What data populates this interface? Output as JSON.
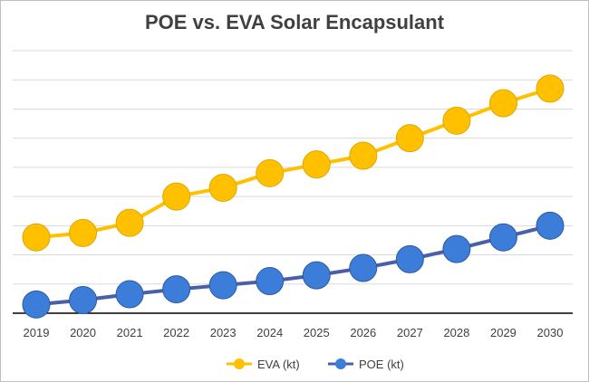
{
  "chart_data": {
    "type": "line",
    "title": "POE vs. EVA Solar Encapsulant",
    "xlabel": "",
    "ylabel": "",
    "categories": [
      "2019",
      "2020",
      "2021",
      "2022",
      "2023",
      "2024",
      "2025",
      "2026",
      "2027",
      "2028",
      "2029",
      "2030"
    ],
    "ylim": [
      0,
      9
    ],
    "grid": true,
    "legend": "bottom",
    "series": [
      {
        "name": "EVA (kt)",
        "color": "#FFC000",
        "values": [
          2.6,
          2.75,
          3.1,
          4.0,
          4.3,
          4.8,
          5.1,
          5.4,
          6.0,
          6.6,
          7.2,
          7.7
        ]
      },
      {
        "name": "POE (kt)",
        "color": "#3B7DD8",
        "line_color": "#4A5FA8",
        "values": [
          0.3,
          0.45,
          0.65,
          0.82,
          0.96,
          1.1,
          1.3,
          1.55,
          1.85,
          2.2,
          2.6,
          3.0
        ]
      }
    ]
  }
}
